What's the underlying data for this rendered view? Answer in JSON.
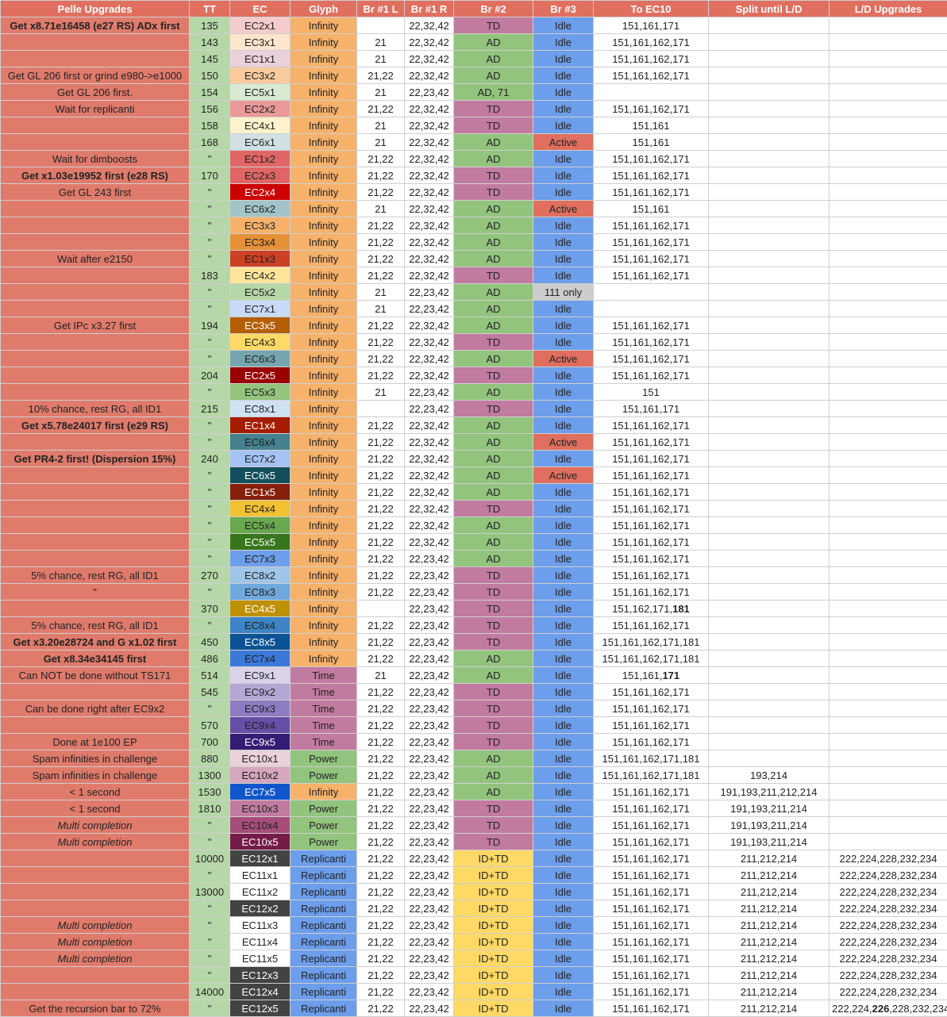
{
  "colors": {
    "header_bg": "#e06f5f",
    "pelle_bg": "#e07b6c",
    "tt_bg": "#b6d7a8",
    "glyph": {
      "Infinity": "#f6b26b",
      "Time": "#c27ba0",
      "Power": "#93c47d",
      "Replicanti": "#6d9eeb"
    },
    "br2": {
      "TD": "#c27ba0",
      "AD": "#93c47d",
      "AD, 71": "#93c47d",
      "ID+TD": "#ffd966"
    },
    "br3": {
      "Idle": "#6d9eeb",
      "Active": "#e06f5f",
      "111 only": "#cccccc"
    }
  },
  "header": [
    "Pelle Upgrades",
    "TT",
    "EC",
    "Glyph",
    "Br #1 L",
    "Br #1 R",
    "Br #2",
    "Br #3",
    "To EC10",
    "Split until L/D",
    "L/D Upgrades"
  ],
  "rows": [
    {
      "pelle": "Get x8.71e16458 (e27 RS) ADx first",
      "pb": true,
      "tt": "135",
      "ec": "EC2x1",
      "ecbg": "#f4cccc",
      "glyph": "Infinity",
      "brl": "",
      "brr": "22,32,42",
      "br2": "TD",
      "br3": "Idle",
      "toec10": "151,161,171",
      "split": "",
      "ld": ""
    },
    {
      "pelle": "",
      "tt": "143",
      "ec": "EC3x1",
      "ecbg": "#fce5cd",
      "glyph": "Infinity",
      "brl": "21",
      "brr": "22,32,42",
      "br2": "AD",
      "br3": "Idle",
      "toec10": "151,161,162,171",
      "split": "",
      "ld": ""
    },
    {
      "pelle": "",
      "tt": "145",
      "ec": "EC1x1",
      "ecbg": "#ead1dc",
      "glyph": "Infinity",
      "brl": "21",
      "brr": "22,32,42",
      "br2": "AD",
      "br3": "Idle",
      "toec10": "151,161,162,171",
      "split": "",
      "ld": ""
    },
    {
      "pelle": "Get GL 206 first or grind e980->e1000",
      "tt": "150",
      "ec": "EC3x2",
      "ecbg": "#f9cb9c",
      "glyph": "Infinity",
      "brl": "21,22",
      "brr": "22,32,42",
      "br2": "AD",
      "br3": "Idle",
      "toec10": "151,161,162,171",
      "split": "",
      "ld": ""
    },
    {
      "pelle": "Get GL 206 first.",
      "tt": "154",
      "ec": "EC5x1",
      "ecbg": "#d9ead3",
      "glyph": "Infinity",
      "brl": "21",
      "brr": "22,23,42",
      "br2": "AD, 71",
      "br3": "Idle",
      "toec10": "",
      "split": "",
      "ld": ""
    },
    {
      "pelle": "Wait for replicanti",
      "tt": "156",
      "ec": "EC2x2",
      "ecbg": "#ea9999",
      "glyph": "Infinity",
      "brl": "21,22",
      "brr": "22,32,42",
      "br2": "TD",
      "br3": "Idle",
      "toec10": "151,161,162,171",
      "split": "",
      "ld": ""
    },
    {
      "pelle": "",
      "tt": "158",
      "ec": "EC4x1",
      "ecbg": "#fff2cc",
      "glyph": "Infinity",
      "brl": "21",
      "brr": "22,32,42",
      "br2": "TD",
      "br3": "Idle",
      "toec10": "151,161",
      "split": "",
      "ld": ""
    },
    {
      "pelle": "",
      "tt": "168",
      "ec": "EC6x1",
      "ecbg": "#d0e0e3",
      "glyph": "Infinity",
      "brl": "21",
      "brr": "22,32,42",
      "br2": "AD",
      "br3": "Active",
      "toec10": "151,161",
      "split": "",
      "ld": ""
    },
    {
      "pelle": "Wait for dimboosts",
      "tt": "\"",
      "ec": "EC1x2",
      "ecbg": "#e06666",
      "glyph": "Infinity",
      "brl": "21,22",
      "brr": "22,32,42",
      "br2": "AD",
      "br3": "Idle",
      "toec10": "151,161,162,171",
      "split": "",
      "ld": ""
    },
    {
      "pelle": "Get x1.03e19952 first (e28 RS)",
      "pb": true,
      "tt": "170",
      "ec": "EC2x3",
      "ecbg": "#e06666",
      "glyph": "Infinity",
      "brl": "21,22",
      "brr": "22,32,42",
      "br2": "TD",
      "br3": "Idle",
      "toec10": "151,161,162,171",
      "split": "",
      "ld": ""
    },
    {
      "pelle": "Get GL 243 first",
      "tt": "\"",
      "ec": "EC2x4",
      "ecbg": "#cc0000",
      "ecw": true,
      "glyph": "Infinity",
      "brl": "21,22",
      "brr": "22,32,42",
      "br2": "TD",
      "br3": "Idle",
      "toec10": "151,161,162,171",
      "split": "",
      "ld": ""
    },
    {
      "pelle": "",
      "tt": "\"",
      "ec": "EC6x2",
      "ecbg": "#a2c4c9",
      "glyph": "Infinity",
      "brl": "21",
      "brr": "22,32,42",
      "br2": "AD",
      "br3": "Active",
      "toec10": "151,161",
      "split": "",
      "ld": ""
    },
    {
      "pelle": "",
      "tt": "\"",
      "ec": "EC3x3",
      "ecbg": "#f6b26b",
      "glyph": "Infinity",
      "brl": "21,22",
      "brr": "22,32,42",
      "br2": "AD",
      "br3": "Idle",
      "toec10": "151,161,162,171",
      "split": "",
      "ld": ""
    },
    {
      "pelle": "",
      "tt": "\"",
      "ec": "EC3x4",
      "ecbg": "#e69138",
      "glyph": "Infinity",
      "brl": "21,22",
      "brr": "22,32,42",
      "br2": "AD",
      "br3": "Idle",
      "toec10": "151,161,162,171",
      "split": "",
      "ld": ""
    },
    {
      "pelle": "Wait after e2150",
      "tt": "\"",
      "ec": "EC1x3",
      "ecbg": "#cc4125",
      "glyph": "Infinity",
      "brl": "21,22",
      "brr": "22,32,42",
      "br2": "AD",
      "br3": "Idle",
      "toec10": "151,161,162,171",
      "split": "",
      "ld": ""
    },
    {
      "pelle": "",
      "tt": "183",
      "ec": "EC4x2",
      "ecbg": "#ffe599",
      "glyph": "Infinity",
      "brl": "21,22",
      "brr": "22,32,42",
      "br2": "TD",
      "br3": "Idle",
      "toec10": "151,161,162,171",
      "split": "",
      "ld": ""
    },
    {
      "pelle": "",
      "tt": "\"",
      "ec": "EC5x2",
      "ecbg": "#b6d7a8",
      "glyph": "Infinity",
      "brl": "21",
      "brr": "22,23,42",
      "br2": "AD",
      "br3": "111 only",
      "toec10": "",
      "split": "",
      "ld": ""
    },
    {
      "pelle": "",
      "tt": "\"",
      "ec": "EC7x1",
      "ecbg": "#c9daf8",
      "glyph": "Infinity",
      "brl": "21",
      "brr": "22,23,42",
      "br2": "AD",
      "br3": "Idle",
      "toec10": "",
      "split": "",
      "ld": ""
    },
    {
      "pelle": "Get IPc x3.27 first",
      "tt": "194",
      "ec": "EC3x5",
      "ecbg": "#b45f06",
      "ecw": true,
      "glyph": "Infinity",
      "brl": "21,22",
      "brr": "22,32,42",
      "br2": "AD",
      "br3": "Idle",
      "toec10": "151,161,162,171",
      "split": "",
      "ld": ""
    },
    {
      "pelle": "",
      "tt": "\"",
      "ec": "EC4x3",
      "ecbg": "#ffd966",
      "glyph": "Infinity",
      "brl": "21,22",
      "brr": "22,32,42",
      "br2": "TD",
      "br3": "Idle",
      "toec10": "151,161,162,171",
      "split": "",
      "ld": ""
    },
    {
      "pelle": "",
      "tt": "\"",
      "ec": "EC6x3",
      "ecbg": "#76a5af",
      "glyph": "Infinity",
      "brl": "21,22",
      "brr": "22,32,42",
      "br2": "AD",
      "br3": "Active",
      "toec10": "151,161,162,171",
      "split": "",
      "ld": ""
    },
    {
      "pelle": "",
      "tt": "204",
      "ec": "EC2x5",
      "ecbg": "#990000",
      "ecw": true,
      "glyph": "Infinity",
      "brl": "21,22",
      "brr": "22,32,42",
      "br2": "TD",
      "br3": "Idle",
      "toec10": "151,161,162,171",
      "split": "",
      "ld": ""
    },
    {
      "pelle": "",
      "tt": "\"",
      "ec": "EC5x3",
      "ecbg": "#93c47d",
      "glyph": "Infinity",
      "brl": "21",
      "brr": "22,23,42",
      "br2": "AD",
      "br3": "Idle",
      "toec10": "151",
      "split": "",
      "ld": ""
    },
    {
      "pelle": "10% chance, rest RG, all ID1",
      "tt": "215",
      "ec": "EC8x1",
      "ecbg": "#cfe2f3",
      "glyph": "Infinity",
      "brl": "",
      "brr": "22,23,42",
      "br2": "TD",
      "br3": "Idle",
      "toec10": "151,161,171",
      "split": "",
      "ld": ""
    },
    {
      "pelle": "Get x5.78e24017 first (e29 RS)",
      "pb": true,
      "tt": "\"",
      "ec": "EC1x4",
      "ecbg": "#a61c00",
      "ecw": true,
      "glyph": "Infinity",
      "brl": "21,22",
      "brr": "22,32,42",
      "br2": "AD",
      "br3": "Idle",
      "toec10": "151,161,162,171",
      "split": "",
      "ld": ""
    },
    {
      "pelle": "",
      "tt": "\"",
      "ec": "EC6x4",
      "ecbg": "#45818e",
      "glyph": "Infinity",
      "brl": "21,22",
      "brr": "22,32,42",
      "br2": "AD",
      "br3": "Active",
      "toec10": "151,161,162,171",
      "split": "",
      "ld": ""
    },
    {
      "pelle": "Get PR4-2 first! (Dispersion 15%)",
      "pb": true,
      "tt": "240",
      "ec": "EC7x2",
      "ecbg": "#a4c2f4",
      "glyph": "Infinity",
      "brl": "21,22",
      "brr": "22,32,42",
      "br2": "AD",
      "br3": "Idle",
      "toec10": "151,161,162,171",
      "split": "",
      "ld": ""
    },
    {
      "pelle": "",
      "tt": "\"",
      "ec": "EC6x5",
      "ecbg": "#134f5c",
      "ecw": true,
      "glyph": "Infinity",
      "brl": "21,22",
      "brr": "22,32,42",
      "br2": "AD",
      "br3": "Active",
      "toec10": "151,161,162,171",
      "split": "",
      "ld": ""
    },
    {
      "pelle": "",
      "tt": "\"",
      "ec": "EC1x5",
      "ecbg": "#85200c",
      "ecw": true,
      "glyph": "Infinity",
      "brl": "21,22",
      "brr": "22,32,42",
      "br2": "AD",
      "br3": "Idle",
      "toec10": "151,161,162,171",
      "split": "",
      "ld": ""
    },
    {
      "pelle": "",
      "tt": "\"",
      "ec": "EC4x4",
      "ecbg": "#f1c232",
      "glyph": "Infinity",
      "brl": "21,22",
      "brr": "22,32,42",
      "br2": "TD",
      "br3": "Idle",
      "toec10": "151,161,162,171",
      "split": "",
      "ld": ""
    },
    {
      "pelle": "",
      "tt": "\"",
      "ec": "EC5x4",
      "ecbg": "#6aa84f",
      "glyph": "Infinity",
      "brl": "21,22",
      "brr": "22,32,42",
      "br2": "AD",
      "br3": "Idle",
      "toec10": "151,161,162,171",
      "split": "",
      "ld": ""
    },
    {
      "pelle": "",
      "tt": "\"",
      "ec": "EC5x5",
      "ecbg": "#38761d",
      "ecw": true,
      "glyph": "Infinity",
      "brl": "21,22",
      "brr": "22,32,42",
      "br2": "AD",
      "br3": "Idle",
      "toec10": "151,161,162,171",
      "split": "",
      "ld": ""
    },
    {
      "pelle": "",
      "tt": "\"",
      "ec": "EC7x3",
      "ecbg": "#6d9eeb",
      "glyph": "Infinity",
      "brl": "21,22",
      "brr": "22,23,42",
      "br2": "AD",
      "br3": "Idle",
      "toec10": "151,161,162,171",
      "split": "",
      "ld": ""
    },
    {
      "pelle": "5% chance, rest RG, all ID1",
      "tt": "270",
      "ec": "EC8x2",
      "ecbg": "#9fc5e8",
      "glyph": "Infinity",
      "brl": "21,22",
      "brr": "22,23,42",
      "br2": "TD",
      "br3": "Idle",
      "toec10": "151,161,162,171",
      "split": "",
      "ld": ""
    },
    {
      "pelle": "\"",
      "tt": "\"",
      "ec": "EC8x3",
      "ecbg": "#6fa8dc",
      "glyph": "Infinity",
      "brl": "21,22",
      "brr": "22,23,42",
      "br2": "TD",
      "br3": "Idle",
      "toec10": "151,161,162,171",
      "split": "",
      "ld": ""
    },
    {
      "pelle": "",
      "tt": "370",
      "ec": "EC4x5",
      "ecbg": "#bf9000",
      "ecw": true,
      "glyph": "Infinity",
      "brl": "",
      "brr": "22,23,42",
      "br2": "TD",
      "br3": "Idle",
      "toec10": "151,162,171,",
      "toec10b": "181",
      "split": "",
      "ld": ""
    },
    {
      "pelle": "5% chance, rest RG, all ID1",
      "tt": "\"",
      "ec": "EC8x4",
      "ecbg": "#3d85c6",
      "glyph": "Infinity",
      "brl": "21,22",
      "brr": "22,23,42",
      "br2": "TD",
      "br3": "Idle",
      "toec10": "151,161,162,171",
      "split": "",
      "ld": ""
    },
    {
      "pelle": "Get x3.20e28724 and G x1.02 first",
      "pb": true,
      "tt": "450",
      "ec": "EC8x5",
      "ecbg": "#0b5394",
      "ecw": true,
      "glyph": "Infinity",
      "brl": "21,22",
      "brr": "22,23,42",
      "br2": "TD",
      "br3": "Idle",
      "toec10": "151,161,162,171,181",
      "split": "",
      "ld": ""
    },
    {
      "pelle": "Get x8.34e34145 first",
      "pb": true,
      "tt": "486",
      "ec": "EC7x4",
      "ecbg": "#3c78d8",
      "glyph": "Infinity",
      "brl": "21,22",
      "brr": "22,23,42",
      "br2": "AD",
      "br3": "Idle",
      "toec10": "151,161,162,171,181",
      "split": "",
      "ld": ""
    },
    {
      "pelle": "Can NOT be done without TS171",
      "tt": "514",
      "ec": "EC9x1",
      "ecbg": "#d9d2e9",
      "glyph": "Time",
      "brl": "21",
      "brr": "22,23,42",
      "br2": "AD",
      "br3": "Idle",
      "toec10": "151,161,",
      "toec10b": "171",
      "split": "",
      "ld": ""
    },
    {
      "pelle": "",
      "tt": "545",
      "ec": "EC9x2",
      "ecbg": "#b4a7d6",
      "glyph": "Time",
      "brl": "21,22",
      "brr": "22,23,42",
      "br2": "TD",
      "br3": "Idle",
      "toec10": "151,161,162,171",
      "split": "",
      "ld": ""
    },
    {
      "pelle": "Can be done right after EC9x2",
      "tt": "\"",
      "ec": "EC9x3",
      "ecbg": "#8e7cc3",
      "glyph": "Time",
      "brl": "21,22",
      "brr": "22,23,42",
      "br2": "TD",
      "br3": "Idle",
      "toec10": "151,161,162,171",
      "split": "",
      "ld": ""
    },
    {
      "pelle": "",
      "tt": "570",
      "ec": "EC9x4",
      "ecbg": "#674ea7",
      "glyph": "Time",
      "brl": "21,22",
      "brr": "22,23,42",
      "br2": "TD",
      "br3": "Idle",
      "toec10": "151,161,162,171",
      "split": "",
      "ld": ""
    },
    {
      "pelle": "Done at 1e100 EP",
      "tt": "700",
      "ec": "EC9x5",
      "ecbg": "#351c75",
      "ecw": true,
      "glyph": "Time",
      "brl": "21,22",
      "brr": "22,23,42",
      "br2": "TD",
      "br3": "Idle",
      "toec10": "151,161,162,171",
      "split": "",
      "ld": ""
    },
    {
      "pelle": "Spam infinities in challenge",
      "tt": "880",
      "ec": "EC10x1",
      "ecbg": "#ead1dc",
      "glyph": "Power",
      "brl": "21,22",
      "brr": "22,23,42",
      "br2": "AD",
      "br3": "Idle",
      "toec10": "151,161,162,171,181",
      "split": "",
      "ld": ""
    },
    {
      "pelle": "Spam infinities in challenge",
      "tt": "1300",
      "ec": "EC10x2",
      "ecbg": "#d5a6bd",
      "glyph": "Power",
      "brl": "21,22",
      "brr": "22,23,42",
      "br2": "AD",
      "br3": "Idle",
      "toec10": "151,161,162,171,181",
      "split": "193,214",
      "ld": ""
    },
    {
      "pelle": "< 1 second",
      "tt": "1530",
      "ec": "EC7x5",
      "ecbg": "#1155cc",
      "ecw": true,
      "glyph": "Infinity",
      "brl": "21,22",
      "brr": "22,23,42",
      "br2": "AD",
      "br3": "Idle",
      "toec10": "151,161,162,171",
      "split": "191,193,211,212,214",
      "ld": ""
    },
    {
      "pelle": "< 1 second",
      "tt": "1810",
      "ec": "EC10x3",
      "ecbg": "#c27ba0",
      "glyph": "Power",
      "brl": "21,22",
      "brr": "22,23,42",
      "br2": "TD",
      "br3": "Idle",
      "toec10": "151,161,162,171",
      "split": "191,193,211,214",
      "ld": ""
    },
    {
      "pelle": "Multi completion",
      "pi": true,
      "tt": "\"",
      "ec": "EC10x4",
      "ecbg": "#a64d79",
      "glyph": "Power",
      "brl": "21,22",
      "brr": "22,23,42",
      "br2": "TD",
      "br3": "Idle",
      "toec10": "151,161,162,171",
      "split": "191,193,211,214",
      "ld": ""
    },
    {
      "pelle": "Multi completion",
      "pi": true,
      "tt": "\"",
      "ec": "EC10x5",
      "ecbg": "#741b47",
      "ecw": true,
      "glyph": "Power",
      "brl": "21,22",
      "brr": "22,23,42",
      "br2": "TD",
      "br3": "Idle",
      "toec10": "151,161,162,171",
      "split": "191,193,211,214",
      "ld": ""
    },
    {
      "pelle": "",
      "tt": "10000",
      "ec": "EC12x1",
      "ecbg": "#434343",
      "ecw": true,
      "glyph": "Replicanti",
      "brl": "21,22",
      "brr": "22,23,42",
      "br2": "ID+TD",
      "br3": "Idle",
      "toec10": "151,161,162,171",
      "split": "211,212,214",
      "ld": "222,224,228,232,234"
    },
    {
      "pelle": "",
      "tt": "\"",
      "ec": "EC11x1",
      "ecbg": "#ffffff",
      "glyph": "Replicanti",
      "brl": "21,22",
      "brr": "22,23,42",
      "br2": "ID+TD",
      "br3": "Idle",
      "toec10": "151,161,162,171",
      "split": "211,212,214",
      "ld": "222,224,228,232,234"
    },
    {
      "pelle": "",
      "tt": "13000",
      "ec": "EC11x2",
      "ecbg": "#ffffff",
      "glyph": "Replicanti",
      "brl": "21,22",
      "brr": "22,23,42",
      "br2": "ID+TD",
      "br3": "Idle",
      "toec10": "151,161,162,171",
      "split": "211,212,214",
      "ld": "222,224,228,232,234"
    },
    {
      "pelle": "",
      "tt": "\"",
      "ec": "EC12x2",
      "ecbg": "#434343",
      "ecw": true,
      "glyph": "Replicanti",
      "brl": "21,22",
      "brr": "22,23,42",
      "br2": "ID+TD",
      "br3": "Idle",
      "toec10": "151,161,162,171",
      "split": "211,212,214",
      "ld": "222,224,228,232,234"
    },
    {
      "pelle": "Multi completion",
      "pi": true,
      "tt": "\"",
      "ec": "EC11x3",
      "ecbg": "#ffffff",
      "glyph": "Replicanti",
      "brl": "21,22",
      "brr": "22,23,42",
      "br2": "ID+TD",
      "br3": "Idle",
      "toec10": "151,161,162,171",
      "split": "211,212,214",
      "ld": "222,224,228,232,234"
    },
    {
      "pelle": "Multi completion",
      "pi": true,
      "tt": "\"",
      "ec": "EC11x4",
      "ecbg": "#ffffff",
      "glyph": "Replicanti",
      "brl": "21,22",
      "brr": "22,23,42",
      "br2": "ID+TD",
      "br3": "Idle",
      "toec10": "151,161,162,171",
      "split": "211,212,214",
      "ld": "222,224,228,232,234"
    },
    {
      "pelle": "Multi completion",
      "pi": true,
      "tt": "\"",
      "ec": "EC11x5",
      "ecbg": "#ffffff",
      "glyph": "Replicanti",
      "brl": "21,22",
      "brr": "22,23,42",
      "br2": "ID+TD",
      "br3": "Idle",
      "toec10": "151,161,162,171",
      "split": "211,212,214",
      "ld": "222,224,228,232,234"
    },
    {
      "pelle": "",
      "tt": "\"",
      "ec": "EC12x3",
      "ecbg": "#434343",
      "ecw": true,
      "glyph": "Replicanti",
      "brl": "21,22",
      "brr": "22,23,42",
      "br2": "ID+TD",
      "br3": "Idle",
      "toec10": "151,161,162,171",
      "split": "211,212,214",
      "ld": "222,224,228,232,234"
    },
    {
      "pelle": "",
      "tt": "14000",
      "ec": "EC12x4",
      "ecbg": "#434343",
      "ecw": true,
      "glyph": "Replicanti",
      "brl": "21,22",
      "brr": "22,23,42",
      "br2": "ID+TD",
      "br3": "Idle",
      "toec10": "151,161,162,171",
      "split": "211,212,214",
      "ld": "222,224,228,232,234"
    },
    {
      "pelle": "Get the recursion bar to 72%",
      "tt": "\"",
      "ec": "EC12x5",
      "ecbg": "#434343",
      "ecw": true,
      "glyph": "Replicanti",
      "brl": "21,22",
      "brr": "22,23,42",
      "br2": "ID+TD",
      "br3": "Idle",
      "toec10": "151,161,162,171",
      "split": "211,212,214",
      "ld": "222,224,",
      "ldb": "226",
      "ldc": ",228,232,234"
    }
  ]
}
